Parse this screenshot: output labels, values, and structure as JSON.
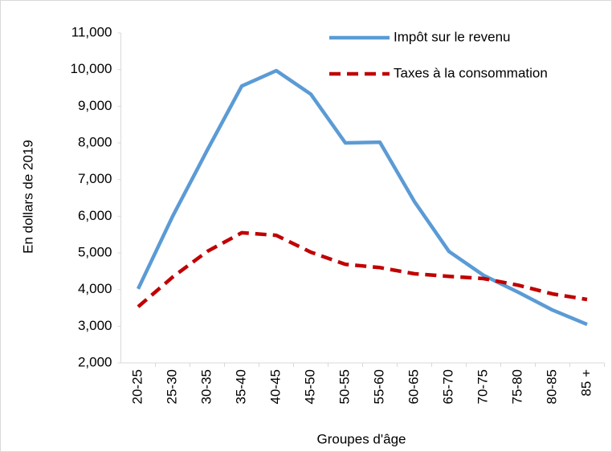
{
  "chart_data": {
    "type": "line",
    "ylabel": "En dollars de 2019",
    "xlabel": "Groupes d'âge",
    "categories": [
      "20-25",
      "25-30",
      "30-35",
      "35-40",
      "40-45",
      "45-50",
      "50-55",
      "55-60",
      "60-65",
      "65-70",
      "70-75",
      "75-80",
      "80-85",
      "85 +"
    ],
    "series": [
      {
        "name": "Impôt sur le revenu",
        "color": "#5b9bd5",
        "dash": false,
        "values": [
          4020,
          6000,
          7800,
          9550,
          9970,
          9330,
          8000,
          8020,
          6400,
          5040,
          4390,
          3930,
          3440,
          3050
        ]
      },
      {
        "name": "Taxes à la consommation",
        "color": "#c00000",
        "dash": true,
        "values": [
          3530,
          4340,
          5040,
          5550,
          5480,
          5020,
          4690,
          4600,
          4430,
          4360,
          4300,
          4120,
          3880,
          3730
        ]
      }
    ],
    "ylim": [
      2000,
      11000
    ],
    "yticks": [
      {
        "value": 2000,
        "label": "2,000"
      },
      {
        "value": 3000,
        "label": "3,000"
      },
      {
        "value": 4000,
        "label": "4,000"
      },
      {
        "value": 5000,
        "label": "5,000"
      },
      {
        "value": 6000,
        "label": "6,000"
      },
      {
        "value": 7000,
        "label": "7,000"
      },
      {
        "value": 8000,
        "label": "8,000"
      },
      {
        "value": 9000,
        "label": "9,000"
      },
      {
        "value": 10000,
        "label": "10,000"
      },
      {
        "value": 11000,
        "label": "11,000"
      }
    ],
    "grid": false,
    "legend": "top-right"
  }
}
